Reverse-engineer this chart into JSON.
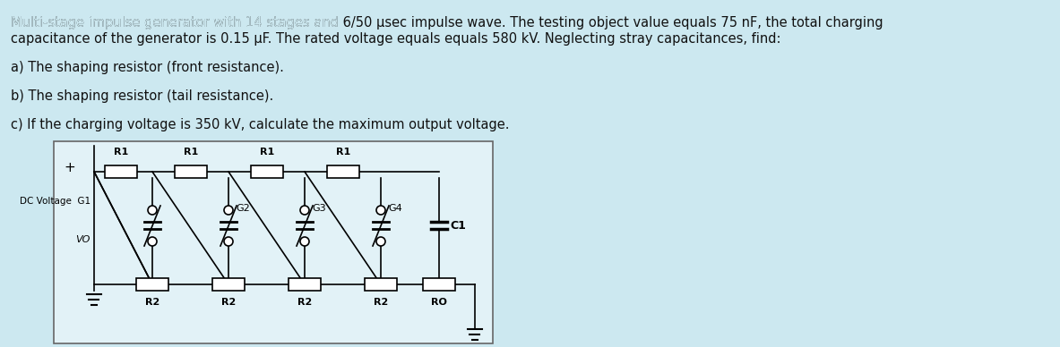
{
  "bg_color": "#cce8f0",
  "circuit_bg": "#dff0f5",
  "text_color": "#111111",
  "title_line1": "Multi-stage impulse generator with 14 stages and 6/50 μsec impulse wave. The testing object value equals 75 nF, the total charging",
  "title_line2": "capacitance of the generator is 0.15 μF. The rated voltage equals equals 580 kV. Neglecting stray capacitances, find:",
  "line_a": "a) The shaping resistor (front resistance).",
  "line_b": "b) The shaping resistor (tail resistance).",
  "line_c": "c) If the charging voltage is 350 kV, calculate the maximum output voltage.",
  "font_size_title": 10.5,
  "font_size_body": 10.5,
  "bold_fraction": "6/50"
}
